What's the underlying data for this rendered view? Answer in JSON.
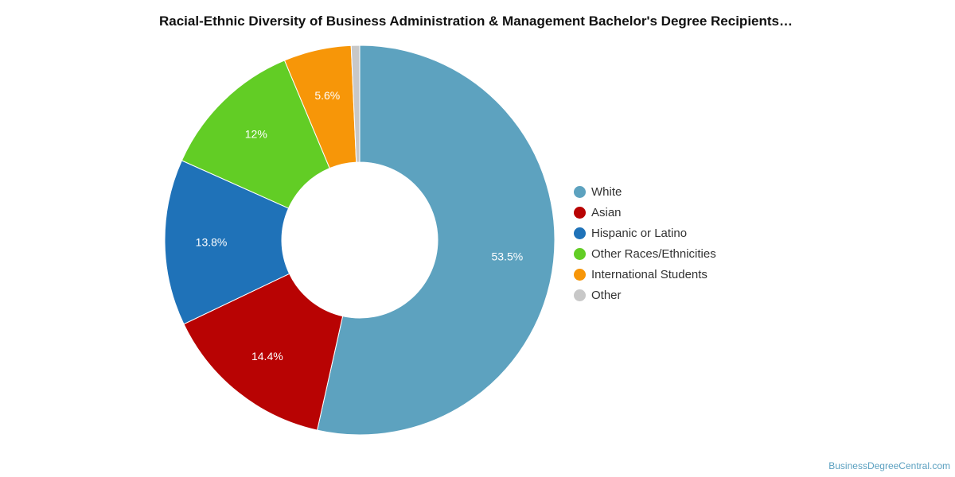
{
  "chart_data": {
    "type": "pie",
    "title": "Racial-Ethnic Diversity of Business Administration & Management Bachelor's Degree Recipients…",
    "series": [
      {
        "name": "White",
        "value": 53.5,
        "label": "53.5%",
        "color": "#5da2bf"
      },
      {
        "name": "Asian",
        "value": 14.4,
        "label": "14.4%",
        "color": "#b80303"
      },
      {
        "name": "Hispanic or Latino",
        "value": 13.8,
        "label": "13.8%",
        "color": "#1f72b8"
      },
      {
        "name": "Other Races/Ethnicities",
        "value": 12.0,
        "label": "12%",
        "color": "#62cd25"
      },
      {
        "name": "International Students",
        "value": 5.6,
        "label": "5.6%",
        "color": "#f79608"
      },
      {
        "name": "Other",
        "value": 0.7,
        "label": "",
        "color": "#c8c8c8"
      }
    ],
    "donut": true,
    "legend_position": "right"
  },
  "source": "BusinessDegreeCentral.com"
}
